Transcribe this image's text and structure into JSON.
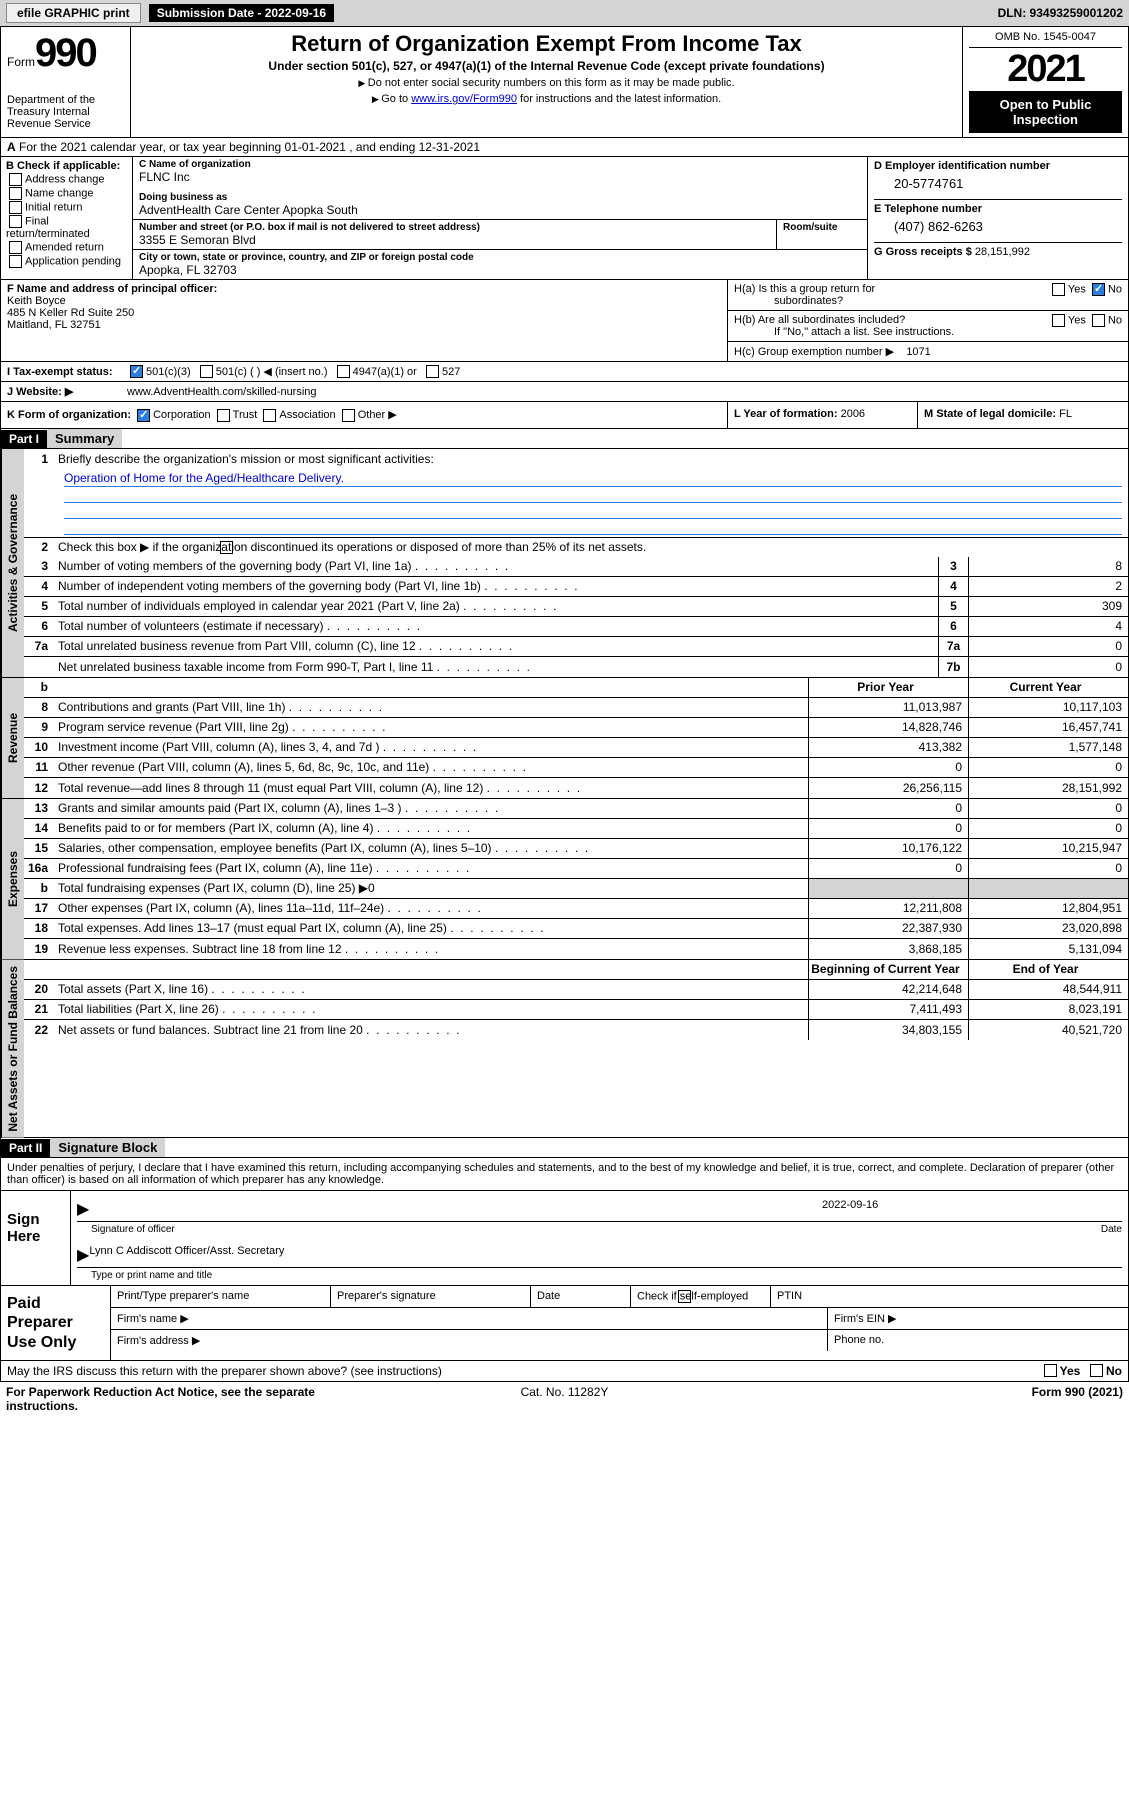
{
  "topbar": {
    "efile": "efile GRAPHIC print",
    "submission_label": "Submission Date - 2022-09-16",
    "dln": "DLN: 93493259001202"
  },
  "header": {
    "form_prefix": "Form",
    "form_number": "990",
    "dept": "Department of the Treasury Internal Revenue Service",
    "title": "Return of Organization Exempt From Income Tax",
    "subtitle": "Under section 501(c), 527, or 4947(a)(1) of the Internal Revenue Code (except private foundations)",
    "note1": "Do not enter social security numbers on this form as it may be made public.",
    "note2_pre": "Go to ",
    "note2_link": "www.irs.gov/Form990",
    "note2_post": " for instructions and the latest information.",
    "omb": "OMB No. 1545-0047",
    "year": "2021",
    "open_pub": "Open to Public Inspection"
  },
  "row_a": {
    "label": "A",
    "text": "For the 2021 calendar year, or tax year beginning 01-01-2021   , and ending 12-31-2021"
  },
  "col_b": {
    "hd": "B Check if applicable:",
    "items": [
      "Address change",
      "Name change",
      "Initial return",
      "Final return/terminated",
      "Amended return",
      "Application pending"
    ]
  },
  "col_c": {
    "name_lbl": "C Name of organization",
    "name": "FLNC Inc",
    "dba_lbl": "Doing business as",
    "dba": "AdventHealth Care Center Apopka South",
    "street_lbl": "Number and street (or P.O. box if mail is not delivered to street address)",
    "street": "3355 E Semoran Blvd",
    "room_lbl": "Room/suite",
    "city_lbl": "City or town, state or province, country, and ZIP or foreign postal code",
    "city": "Apopka, FL  32703"
  },
  "col_d": {
    "ein_lbl": "D Employer identification number",
    "ein": "20-5774761",
    "phone_lbl": "E Telephone number",
    "phone": "(407) 862-6263",
    "gross_lbl": "G Gross receipts $",
    "gross": "28,151,992"
  },
  "sec_f": {
    "lbl": "F Name and address of principal officer:",
    "name": "Keith Boyce",
    "addr1": "485 N Keller Rd Suite 250",
    "addr2": "Maitland, FL  32751"
  },
  "sec_h": {
    "ha_lbl": "H(a)  Is this a group return for",
    "ha_sub": "subordinates?",
    "hb_lbl": "H(b)  Are all subordinates included?",
    "hb_note": "If \"No,\" attach a list. See instructions.",
    "hc_lbl": "H(c)  Group exemption number ▶",
    "hc_val": "1071"
  },
  "tax_status": {
    "lbl": "I     Tax-exempt status:",
    "opt1": "501(c)(3)",
    "opt2": "501(c) (  ) ◀ (insert no.)",
    "opt3": "4947(a)(1) or",
    "opt4": "527"
  },
  "website": {
    "lbl": "J    Website: ▶",
    "val": "www.AdventHealth.com/skilled-nursing"
  },
  "korg": {
    "lbl": "K Form of organization:",
    "opts": [
      "Corporation",
      "Trust",
      "Association",
      "Other ▶"
    ],
    "l_lbl": "L Year of formation:",
    "l_val": "2006",
    "m_lbl": "M State of legal domicile:",
    "m_val": "FL"
  },
  "part1": {
    "hdr": "Part I",
    "title": "Summary"
  },
  "summary": {
    "line1_lbl": "Briefly describe the organization's mission or most significant activities:",
    "line1_val": "Operation of Home for the Aged/Healthcare Delivery.",
    "line2": "Check this box ▶         if the organization discontinued its operations or disposed of more than 25% of its net assets.",
    "lines_gov": [
      {
        "n": "3",
        "d": "Number of voting members of the governing body (Part VI, line 1a)",
        "box": "3",
        "v": "8"
      },
      {
        "n": "4",
        "d": "Number of independent voting members of the governing body (Part VI, line 1b)",
        "box": "4",
        "v": "2"
      },
      {
        "n": "5",
        "d": "Total number of individuals employed in calendar year 2021 (Part V, line 2a)",
        "box": "5",
        "v": "309"
      },
      {
        "n": "6",
        "d": "Total number of volunteers (estimate if necessary)",
        "box": "6",
        "v": "4"
      },
      {
        "n": "7a",
        "d": "Total unrelated business revenue from Part VIII, column (C), line 12",
        "box": "7a",
        "v": "0"
      },
      {
        "n": "",
        "d": "Net unrelated business taxable income from Form 990-T, Part I, line 11",
        "box": "7b",
        "v": "0"
      }
    ],
    "hdr_prior": "Prior Year",
    "hdr_current": "Current Year",
    "lines_rev": [
      {
        "n": "8",
        "d": "Contributions and grants (Part VIII, line 1h)",
        "p": "11,013,987",
        "c": "10,117,103"
      },
      {
        "n": "9",
        "d": "Program service revenue (Part VIII, line 2g)",
        "p": "14,828,746",
        "c": "16,457,741"
      },
      {
        "n": "10",
        "d": "Investment income (Part VIII, column (A), lines 3, 4, and 7d )",
        "p": "413,382",
        "c": "1,577,148"
      },
      {
        "n": "11",
        "d": "Other revenue (Part VIII, column (A), lines 5, 6d, 8c, 9c, 10c, and 11e)",
        "p": "0",
        "c": "0"
      },
      {
        "n": "12",
        "d": "Total revenue—add lines 8 through 11 (must equal Part VIII, column (A), line 12)",
        "p": "26,256,115",
        "c": "28,151,992"
      }
    ],
    "lines_exp": [
      {
        "n": "13",
        "d": "Grants and similar amounts paid (Part IX, column (A), lines 1–3 )",
        "p": "0",
        "c": "0"
      },
      {
        "n": "14",
        "d": "Benefits paid to or for members (Part IX, column (A), line 4)",
        "p": "0",
        "c": "0"
      },
      {
        "n": "15",
        "d": "Salaries, other compensation, employee benefits (Part IX, column (A), lines 5–10)",
        "p": "10,176,122",
        "c": "10,215,947"
      },
      {
        "n": "16a",
        "d": "Professional fundraising fees (Part IX, column (A), line 11e)",
        "p": "0",
        "c": "0"
      },
      {
        "n": "b",
        "d": "Total fundraising expenses (Part IX, column (D), line 25) ▶0",
        "p": "",
        "c": "",
        "grey": true
      },
      {
        "n": "17",
        "d": "Other expenses (Part IX, column (A), lines 11a–11d, 11f–24e)",
        "p": "12,211,808",
        "c": "12,804,951"
      },
      {
        "n": "18",
        "d": "Total expenses. Add lines 13–17 (must equal Part IX, column (A), line 25)",
        "p": "22,387,930",
        "c": "23,020,898"
      },
      {
        "n": "19",
        "d": "Revenue less expenses. Subtract line 18 from line 12",
        "p": "3,868,185",
        "c": "5,131,094"
      }
    ],
    "hdr_begin": "Beginning of Current Year",
    "hdr_end": "End of Year",
    "lines_net": [
      {
        "n": "20",
        "d": "Total assets (Part X, line 16)",
        "p": "42,214,648",
        "c": "48,544,911"
      },
      {
        "n": "21",
        "d": "Total liabilities (Part X, line 26)",
        "p": "7,411,493",
        "c": "8,023,191"
      },
      {
        "n": "22",
        "d": "Net assets or fund balances. Subtract line 21 from line 20",
        "p": "34,803,155",
        "c": "40,521,720"
      }
    ]
  },
  "vtabs": {
    "gov": "Activities & Governance",
    "rev": "Revenue",
    "exp": "Expenses",
    "net": "Net Assets or Fund Balances"
  },
  "part2": {
    "hdr": "Part II",
    "title": "Signature Block"
  },
  "sig": {
    "intro": "Under penalties of perjury, I declare that I have examined this return, including accompanying schedules and statements, and to the best of my knowledge and belief, it is true, correct, and complete. Declaration of preparer (other than officer) is based on all information of which preparer has any knowledge.",
    "lbl": "Sign Here",
    "sig_of": "Signature of officer",
    "date": "2022-09-16",
    "date_lbl": "Date",
    "name": "Lynn C Addiscott Officer/Asst. Secretary",
    "name_lbl": "Type or print name and title"
  },
  "prep": {
    "lbl": "Paid Preparer Use Only",
    "r1": [
      "Print/Type preparer's name",
      "Preparer's signature",
      "Date",
      "Check         if self-employed",
      "PTIN"
    ],
    "r2_a": "Firm's name   ▶",
    "r2_b": "Firm's EIN ▶",
    "r3_a": "Firm's address ▶",
    "r3_b": "Phone no."
  },
  "discuss": {
    "q": "May the IRS discuss this return with the preparer shown above? (see instructions)",
    "yes": "Yes",
    "no": "No"
  },
  "footer": {
    "l": "For Paperwork Reduction Act Notice, see the separate instructions.",
    "c": "Cat. No. 11282Y",
    "r": "Form 990 (2021)"
  }
}
